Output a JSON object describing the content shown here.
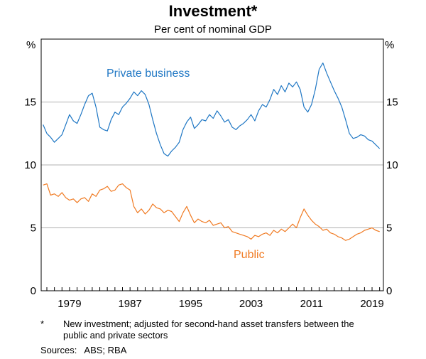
{
  "chart_data": {
    "type": "line",
    "title": "Investment*",
    "subtitle": "Per cent of nominal GDP",
    "y_unit_left": "%",
    "y_unit_right": "%",
    "ylim": [
      0,
      20
    ],
    "yticks": [
      0,
      5,
      10,
      15
    ],
    "xlim": [
      1975.25,
      2020.5
    ],
    "xticks": [
      1979,
      1987,
      1995,
      2003,
      2011,
      2019
    ],
    "x_minor_ticks_every": 1,
    "grid": "horizontal",
    "series": [
      {
        "name": "Private business",
        "color": "#1f77c4",
        "points": [
          [
            1975.5,
            13.2
          ],
          [
            1976.0,
            12.5
          ],
          [
            1976.5,
            12.2
          ],
          [
            1977.0,
            11.8
          ],
          [
            1977.5,
            12.1
          ],
          [
            1978.0,
            12.4
          ],
          [
            1978.5,
            13.2
          ],
          [
            1979.0,
            14.0
          ],
          [
            1979.5,
            13.5
          ],
          [
            1980.0,
            13.3
          ],
          [
            1980.5,
            14.0
          ],
          [
            1981.0,
            14.8
          ],
          [
            1981.5,
            15.5
          ],
          [
            1982.0,
            15.7
          ],
          [
            1982.5,
            14.6
          ],
          [
            1983.0,
            13.0
          ],
          [
            1983.5,
            12.8
          ],
          [
            1984.0,
            12.7
          ],
          [
            1984.5,
            13.6
          ],
          [
            1985.0,
            14.2
          ],
          [
            1985.5,
            14.0
          ],
          [
            1986.0,
            14.6
          ],
          [
            1986.5,
            14.9
          ],
          [
            1987.0,
            15.3
          ],
          [
            1987.5,
            15.8
          ],
          [
            1988.0,
            15.5
          ],
          [
            1988.5,
            15.9
          ],
          [
            1989.0,
            15.6
          ],
          [
            1989.5,
            14.8
          ],
          [
            1990.0,
            13.6
          ],
          [
            1990.5,
            12.5
          ],
          [
            1991.0,
            11.6
          ],
          [
            1991.5,
            10.9
          ],
          [
            1992.0,
            10.7
          ],
          [
            1992.5,
            11.1
          ],
          [
            1993.0,
            11.4
          ],
          [
            1993.5,
            11.8
          ],
          [
            1994.0,
            12.8
          ],
          [
            1994.5,
            13.4
          ],
          [
            1995.0,
            13.8
          ],
          [
            1995.5,
            12.9
          ],
          [
            1996.0,
            13.2
          ],
          [
            1996.5,
            13.6
          ],
          [
            1997.0,
            13.5
          ],
          [
            1997.5,
            14.0
          ],
          [
            1998.0,
            13.7
          ],
          [
            1998.5,
            14.3
          ],
          [
            1999.0,
            13.9
          ],
          [
            1999.5,
            13.4
          ],
          [
            2000.0,
            13.6
          ],
          [
            2000.5,
            13.0
          ],
          [
            2001.0,
            12.8
          ],
          [
            2001.5,
            13.1
          ],
          [
            2002.0,
            13.3
          ],
          [
            2002.5,
            13.6
          ],
          [
            2003.0,
            14.0
          ],
          [
            2003.5,
            13.5
          ],
          [
            2004.0,
            14.3
          ],
          [
            2004.5,
            14.8
          ],
          [
            2005.0,
            14.6
          ],
          [
            2005.5,
            15.2
          ],
          [
            2006.0,
            16.0
          ],
          [
            2006.5,
            15.6
          ],
          [
            2007.0,
            16.3
          ],
          [
            2007.5,
            15.8
          ],
          [
            2008.0,
            16.5
          ],
          [
            2008.5,
            16.2
          ],
          [
            2009.0,
            16.6
          ],
          [
            2009.5,
            16.0
          ],
          [
            2010.0,
            14.6
          ],
          [
            2010.5,
            14.2
          ],
          [
            2011.0,
            14.8
          ],
          [
            2011.5,
            16.0
          ],
          [
            2012.0,
            17.6
          ],
          [
            2012.5,
            18.1
          ],
          [
            2013.0,
            17.3
          ],
          [
            2013.5,
            16.6
          ],
          [
            2014.0,
            15.9
          ],
          [
            2014.5,
            15.3
          ],
          [
            2015.0,
            14.6
          ],
          [
            2015.5,
            13.6
          ],
          [
            2016.0,
            12.5
          ],
          [
            2016.5,
            12.1
          ],
          [
            2017.0,
            12.2
          ],
          [
            2017.5,
            12.4
          ],
          [
            2018.0,
            12.3
          ],
          [
            2018.5,
            12.0
          ],
          [
            2019.0,
            11.9
          ],
          [
            2019.5,
            11.6
          ],
          [
            2020.0,
            11.3
          ]
        ]
      },
      {
        "name": "Public",
        "color": "#f07a22",
        "points": [
          [
            1975.5,
            8.4
          ],
          [
            1976.0,
            8.5
          ],
          [
            1976.5,
            7.6
          ],
          [
            1977.0,
            7.7
          ],
          [
            1977.5,
            7.5
          ],
          [
            1978.0,
            7.8
          ],
          [
            1978.5,
            7.4
          ],
          [
            1979.0,
            7.2
          ],
          [
            1979.5,
            7.3
          ],
          [
            1980.0,
            7.0
          ],
          [
            1980.5,
            7.3
          ],
          [
            1981.0,
            7.4
          ],
          [
            1981.5,
            7.1
          ],
          [
            1982.0,
            7.7
          ],
          [
            1982.5,
            7.5
          ],
          [
            1983.0,
            8.0
          ],
          [
            1983.5,
            8.1
          ],
          [
            1984.0,
            8.3
          ],
          [
            1984.5,
            7.9
          ],
          [
            1985.0,
            8.0
          ],
          [
            1985.5,
            8.4
          ],
          [
            1986.0,
            8.5
          ],
          [
            1986.5,
            8.2
          ],
          [
            1987.0,
            8.0
          ],
          [
            1987.5,
            6.7
          ],
          [
            1988.0,
            6.2
          ],
          [
            1988.5,
            6.5
          ],
          [
            1989.0,
            6.1
          ],
          [
            1989.5,
            6.4
          ],
          [
            1990.0,
            6.9
          ],
          [
            1990.5,
            6.6
          ],
          [
            1991.0,
            6.5
          ],
          [
            1991.5,
            6.2
          ],
          [
            1992.0,
            6.4
          ],
          [
            1992.5,
            6.3
          ],
          [
            1993.0,
            5.9
          ],
          [
            1993.5,
            5.5
          ],
          [
            1994.0,
            6.2
          ],
          [
            1994.5,
            6.7
          ],
          [
            1995.0,
            6.0
          ],
          [
            1995.5,
            5.4
          ],
          [
            1996.0,
            5.7
          ],
          [
            1996.5,
            5.5
          ],
          [
            1997.0,
            5.4
          ],
          [
            1997.5,
            5.6
          ],
          [
            1998.0,
            5.2
          ],
          [
            1998.5,
            5.3
          ],
          [
            1999.0,
            5.4
          ],
          [
            1999.5,
            5.0
          ],
          [
            2000.0,
            5.1
          ],
          [
            2000.5,
            4.7
          ],
          [
            2001.0,
            4.6
          ],
          [
            2001.5,
            4.5
          ],
          [
            2002.0,
            4.4
          ],
          [
            2002.5,
            4.3
          ],
          [
            2003.0,
            4.1
          ],
          [
            2003.5,
            4.4
          ],
          [
            2004.0,
            4.3
          ],
          [
            2004.5,
            4.5
          ],
          [
            2005.0,
            4.6
          ],
          [
            2005.5,
            4.4
          ],
          [
            2006.0,
            4.8
          ],
          [
            2006.5,
            4.6
          ],
          [
            2007.0,
            4.9
          ],
          [
            2007.5,
            4.7
          ],
          [
            2008.0,
            5.0
          ],
          [
            2008.5,
            5.3
          ],
          [
            2009.0,
            5.0
          ],
          [
            2009.5,
            5.8
          ],
          [
            2010.0,
            6.5
          ],
          [
            2010.5,
            6.0
          ],
          [
            2011.0,
            5.6
          ],
          [
            2011.5,
            5.3
          ],
          [
            2012.0,
            5.1
          ],
          [
            2012.5,
            4.8
          ],
          [
            2013.0,
            4.9
          ],
          [
            2013.5,
            4.6
          ],
          [
            2014.0,
            4.5
          ],
          [
            2014.5,
            4.3
          ],
          [
            2015.0,
            4.2
          ],
          [
            2015.5,
            4.0
          ],
          [
            2016.0,
            4.1
          ],
          [
            2016.5,
            4.3
          ],
          [
            2017.0,
            4.5
          ],
          [
            2017.5,
            4.6
          ],
          [
            2018.0,
            4.8
          ],
          [
            2018.5,
            4.9
          ],
          [
            2019.0,
            5.0
          ],
          [
            2019.5,
            4.8
          ],
          [
            2020.0,
            4.7
          ]
        ]
      }
    ]
  },
  "footnote": {
    "marker": "*",
    "text": "New investment; adjusted for second-hand asset transfers between the public and private sectors"
  },
  "sources": "Sources:   ABS; RBA"
}
